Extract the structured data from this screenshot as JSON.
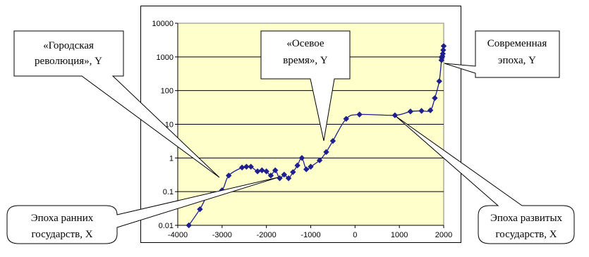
{
  "chart_data": {
    "type": "scatter",
    "title": "",
    "xlabel": "",
    "ylabel": "",
    "log_y": true,
    "xlim": [
      -4000,
      2000
    ],
    "ylim": [
      0.01,
      10000
    ],
    "x_ticks": [
      "-4000",
      "-3000",
      "-2000",
      "-1000",
      "0",
      "1000",
      "2000"
    ],
    "y_ticks": [
      "0.01",
      "0.1",
      "1",
      "10",
      "100",
      "1000",
      "10000"
    ],
    "grid": true,
    "legend": "none",
    "colors": {
      "plot_background": "#FFFFCC",
      "series": "#1F1F8F",
      "gridlines": "#000000"
    },
    "series": [
      {
        "x": [
          -3750,
          -3500,
          -3350,
          -3250,
          -3000,
          -2850,
          -2550,
          -2450,
          -2350,
          -2200,
          -2100,
          -2000,
          -1900,
          -1800,
          -1700,
          -1600,
          -1500,
          -1400,
          -1300,
          -1200,
          -1100,
          -1000,
          -800,
          -650,
          -500,
          -200,
          100,
          900,
          1250,
          1500,
          1700,
          1800,
          1900,
          1950,
          1960,
          1970,
          1980,
          1990,
          2000
        ],
        "y": [
          0.01,
          0.03,
          0.07,
          0.08,
          0.11,
          0.3,
          0.52,
          0.55,
          0.55,
          0.4,
          0.43,
          0.4,
          0.3,
          0.43,
          0.25,
          0.32,
          0.25,
          0.38,
          0.6,
          1.0,
          0.46,
          0.55,
          0.85,
          1.5,
          3.2,
          14.5,
          19.5,
          18.5,
          24,
          25,
          26,
          60,
          190,
          800,
          950,
          1050,
          1250,
          1600,
          2100
        ]
      }
    ],
    "annotations": [
      {
        "id": "urban",
        "lines": [
          "«Городская",
          "революция», Y"
        ]
      },
      {
        "id": "axial",
        "lines": [
          "«Осевое",
          "время», Y"
        ]
      },
      {
        "id": "modern",
        "lines": [
          "Современная",
          "эпоха, Y"
        ]
      },
      {
        "id": "early",
        "lines": [
          "Эпоха ранних",
          "государств, X"
        ]
      },
      {
        "id": "developed",
        "lines": [
          "Эпоха развитых",
          "государств, X"
        ]
      }
    ]
  }
}
